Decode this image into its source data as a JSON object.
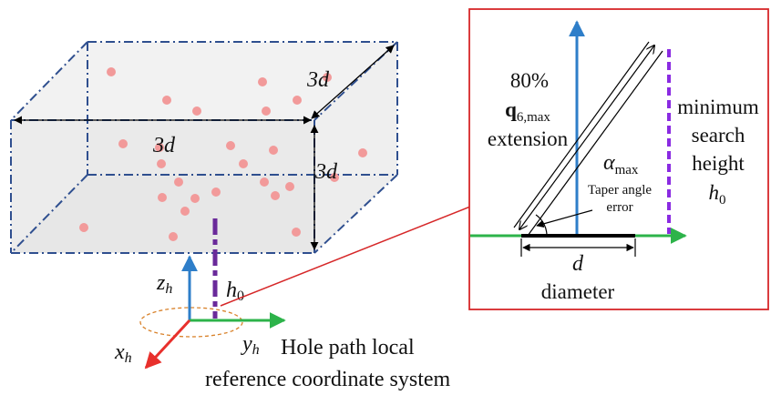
{
  "box": {
    "width_label": "3d",
    "depth_label": "3d",
    "height_label": "3d",
    "colors": {
      "edge": "#2f4f8f",
      "face": "#ececec",
      "point": "#f28f8f",
      "dim": "#000000"
    }
  },
  "coords": {
    "z_base": "z",
    "z_sub": "h",
    "y_base": "y",
    "y_sub": "h",
    "x_base": "x",
    "x_sub": "h",
    "h0_base": "h",
    "h0_sub": "0",
    "caption_line1": "Hole path local",
    "caption_line2": "reference coordinate system",
    "colors": {
      "z": "#2e7ec9",
      "y": "#2db34a",
      "x": "#e8302c",
      "h0": "#6a2a9a",
      "ellipse": "#d9822b"
    }
  },
  "inset": {
    "extension_pct": "80%",
    "q_base": "q",
    "q_sub": "6,max",
    "extension_word": "extension",
    "alpha_base": "α",
    "alpha_sub": "max",
    "taper_line1": "Taper angle",
    "taper_line2": "error",
    "min_line1": "minimum",
    "min_line2": "search",
    "min_line3": "height",
    "h0_base": "h",
    "h0_sub": "0",
    "d_label": "d",
    "diameter_word": "diameter",
    "colors": {
      "frame": "#d62728",
      "axis": "#2e7ec9",
      "ground": "#2db34a",
      "dashed": "#8a2be2",
      "leader": "#d62728"
    }
  }
}
